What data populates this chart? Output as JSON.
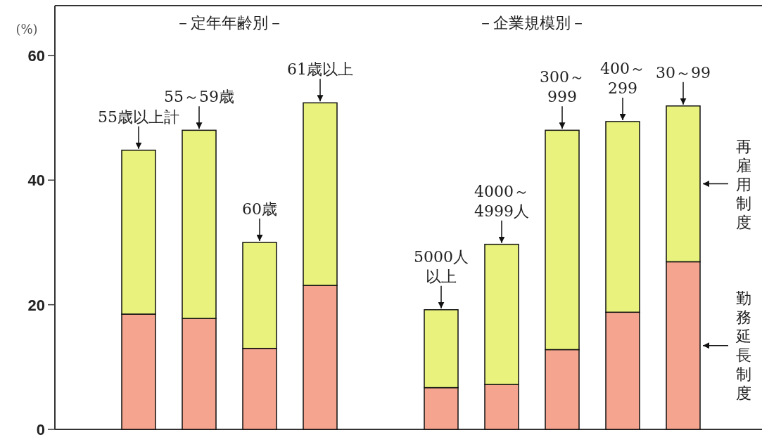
{
  "chart_data": {
    "type": "bar",
    "stacked": true,
    "ylabel": "(%)",
    "ylim": [
      0,
      68
    ],
    "yticks": [
      0,
      20,
      40,
      60
    ],
    "grid": false,
    "legend": "right",
    "categories": [
      "55歳以上計",
      "55～59歳",
      "60歳",
      "61歳以上",
      null,
      "5000人以上",
      "4000～4999人",
      "300～999",
      "400～299",
      "30～99"
    ],
    "series": [
      {
        "name": "勤務延長制度",
        "color": "#f5a58f",
        "values": [
          18.5,
          17.8,
          13.0,
          23.1,
          null,
          6.7,
          7.2,
          12.8,
          18.8,
          26.9
        ]
      },
      {
        "name": "再雇用制度",
        "color": "#e8f27c",
        "values": [
          26.3,
          30.2,
          17.0,
          29.3,
          null,
          12.5,
          22.5,
          35.2,
          30.6,
          25.0
        ]
      }
    ],
    "annotations": [
      "－定年年齢別－",
      "－企業規模別－"
    ]
  }
}
